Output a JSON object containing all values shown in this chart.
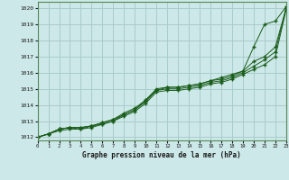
{
  "title": "Graphe pression niveau de la mer (hPa)",
  "background_color": "#cce8e8",
  "grid_color": "#aacccc",
  "line_color": "#1a5c1a",
  "xlim": [
    0,
    23
  ],
  "ylim": [
    1011.8,
    1020.4
  ],
  "yticks": [
    1012,
    1013,
    1014,
    1015,
    1016,
    1017,
    1018,
    1019,
    1020
  ],
  "xticks": [
    0,
    1,
    2,
    3,
    4,
    5,
    6,
    7,
    8,
    9,
    10,
    11,
    12,
    13,
    14,
    15,
    16,
    17,
    18,
    19,
    20,
    21,
    22,
    23
  ],
  "series": [
    [
      1012.0,
      1012.2,
      1012.5,
      1012.6,
      1012.6,
      1012.7,
      1012.8,
      1013.0,
      1013.4,
      1013.7,
      1014.3,
      1014.9,
      1015.1,
      1015.1,
      1015.2,
      1015.3,
      1015.5,
      1015.7,
      1015.9,
      1016.1,
      1017.6,
      1019.0,
      1019.2,
      1020.1
    ],
    [
      1012.0,
      1012.2,
      1012.5,
      1012.6,
      1012.6,
      1012.7,
      1012.9,
      1013.1,
      1013.5,
      1013.8,
      1014.3,
      1015.0,
      1015.1,
      1015.1,
      1015.2,
      1015.3,
      1015.5,
      1015.6,
      1015.8,
      1016.1,
      1016.7,
      1017.0,
      1017.6,
      1020.0
    ],
    [
      1012.0,
      1012.2,
      1012.5,
      1012.6,
      1012.5,
      1012.7,
      1012.9,
      1013.1,
      1013.4,
      1013.7,
      1014.2,
      1014.9,
      1015.0,
      1015.0,
      1015.1,
      1015.2,
      1015.4,
      1015.5,
      1015.7,
      1016.0,
      1016.4,
      1016.8,
      1017.3,
      1020.0
    ],
    [
      1012.0,
      1012.2,
      1012.4,
      1012.5,
      1012.5,
      1012.6,
      1012.8,
      1013.0,
      1013.3,
      1013.6,
      1014.1,
      1014.8,
      1014.9,
      1014.9,
      1015.0,
      1015.1,
      1015.3,
      1015.4,
      1015.6,
      1015.9,
      1016.2,
      1016.5,
      1017.0,
      1019.9
    ]
  ]
}
